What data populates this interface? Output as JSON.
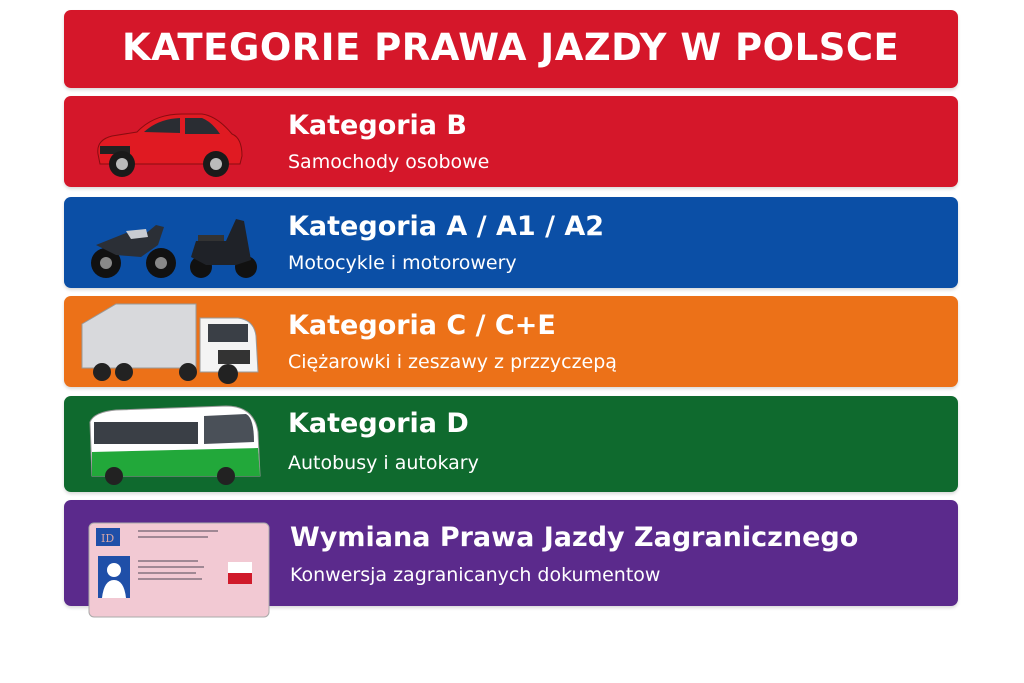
{
  "title": "KATEGORIE PRAWA JAZDY W POLSCE",
  "rows": [
    {
      "heading": "Kategoria B",
      "sub": "Samochody osobowe",
      "color": "#d5172a",
      "icon": "car-icon"
    },
    {
      "heading": "Kategoria A / A1 / A2",
      "sub": "Motocykle i motorowery",
      "color": "#0b4fa6",
      "icon": "motorcycle-icon"
    },
    {
      "heading": "Kategoria C / C+E",
      "sub": "Ciężarowki i zeszawy z przzyczepą",
      "color": "#ec7118",
      "icon": "truck-icon"
    },
    {
      "heading": "Kategoria D",
      "sub": "Autobusy i autokary",
      "color": "#0f6a2e",
      "icon": "bus-icon"
    },
    {
      "heading": "Wymiana Prawa Jazdy Zagranicznego",
      "sub": "Konwersja zagranicanych dokumentow",
      "color": "#5b2a8c",
      "icon": "driving-license-icon"
    }
  ],
  "license_card_label": "ID"
}
